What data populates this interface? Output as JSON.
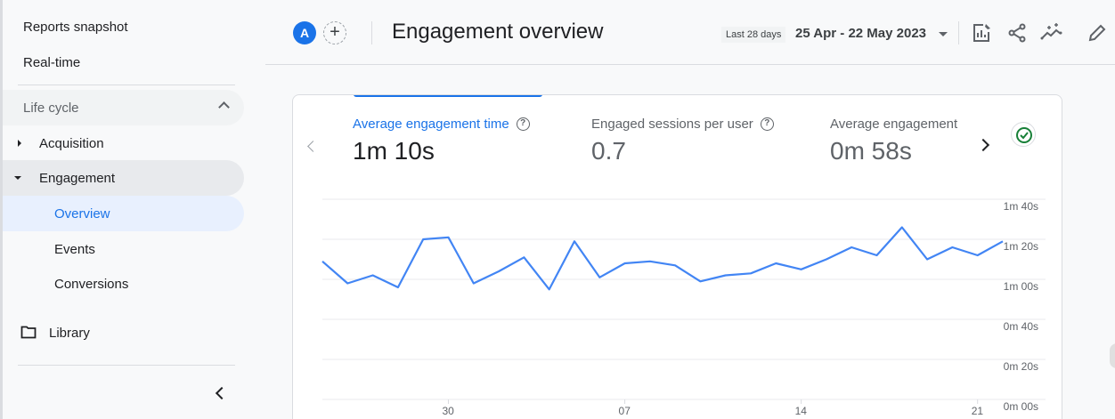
{
  "sidebar": {
    "top_items": [
      {
        "label": "Reports snapshot"
      },
      {
        "label": "Real-time"
      }
    ],
    "section": {
      "label": "Life cycle",
      "expanded": true
    },
    "items": [
      {
        "label": "Acquisition",
        "expanded": false
      },
      {
        "label": "Engagement",
        "expanded": true
      }
    ],
    "sub_items": [
      {
        "label": "Overview",
        "active": true
      },
      {
        "label": "Events"
      },
      {
        "label": "Conversions"
      }
    ],
    "library": {
      "label": "Library",
      "icon": "folder-icon"
    },
    "collapse_icon": "chevron-left-icon"
  },
  "header": {
    "avatar_letter": "A",
    "add_comparison_symbol": "+",
    "title": "Engagement overview",
    "date_chip": "Last 28 days",
    "date_range": "25 Apr - 22 May 2023",
    "icons": [
      "customize-report-icon",
      "share-icon",
      "insights-icon",
      "edit-icon"
    ]
  },
  "card": {
    "metrics": [
      {
        "label": "Average engagement time",
        "value": "1m 10s",
        "active": true,
        "help": "?"
      },
      {
        "label": "Engaged sessions per user",
        "value": "0.7",
        "active": false,
        "help": "?"
      },
      {
        "label": "Average engagement",
        "value": "0m 58s",
        "active": false
      }
    ],
    "accent_color": "#1a73e8",
    "status_icon": "check-circle-icon",
    "status_color": "#188038"
  },
  "chart_data": {
    "type": "line",
    "title": "Average engagement time",
    "xlabel": "",
    "ylabel": "",
    "x": [
      "25 Apr",
      "26 Apr",
      "27 Apr",
      "28 Apr",
      "29 Apr",
      "30 Apr",
      "01 May",
      "02 May",
      "03 May",
      "04 May",
      "05 May",
      "06 May",
      "07 May",
      "08 May",
      "09 May",
      "10 May",
      "11 May",
      "12 May",
      "13 May",
      "14 May",
      "15 May",
      "16 May",
      "17 May",
      "18 May",
      "19 May",
      "20 May",
      "21 May",
      "22 May"
    ],
    "series": [
      {
        "name": "Average engagement time (s)",
        "color": "#4285f4",
        "values": [
          69,
          58,
          62,
          56,
          80,
          81,
          58,
          64,
          71,
          55,
          79,
          61,
          68,
          69,
          67,
          59,
          62,
          63,
          68,
          65,
          70,
          76,
          72,
          86,
          70,
          76,
          72,
          79
        ]
      }
    ],
    "y_ticks": [
      "1m 40s",
      "1m 20s",
      "1m 00s",
      "0m 40s",
      "0m 20s",
      "0m 00s"
    ],
    "y_tick_values": [
      100,
      80,
      60,
      40,
      20,
      0
    ],
    "x_ticks": [
      "30",
      "07",
      "14",
      "21"
    ],
    "ylim": [
      0,
      100
    ],
    "grid": true,
    "legend": "none"
  }
}
